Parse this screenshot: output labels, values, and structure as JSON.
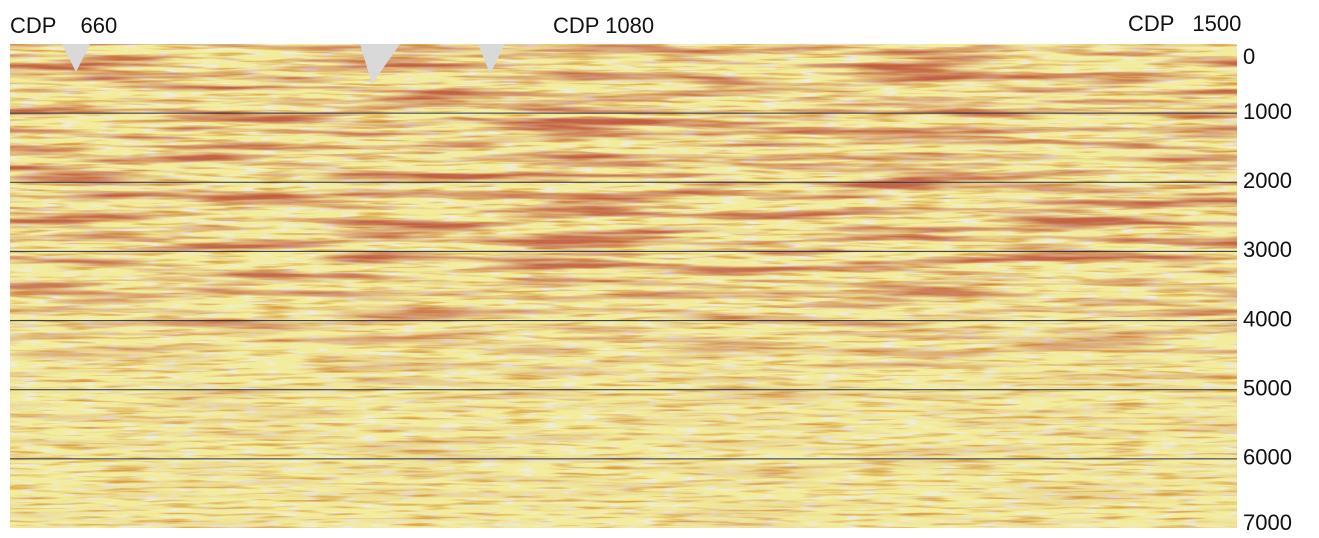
{
  "top_labels": [
    "CDP    660",
    "CDP 1080",
    "CDP   1500"
  ],
  "depth_axis": {
    "ticks": [
      0,
      1000,
      2000,
      3000,
      4000,
      5000,
      6000,
      7000
    ]
  }
}
